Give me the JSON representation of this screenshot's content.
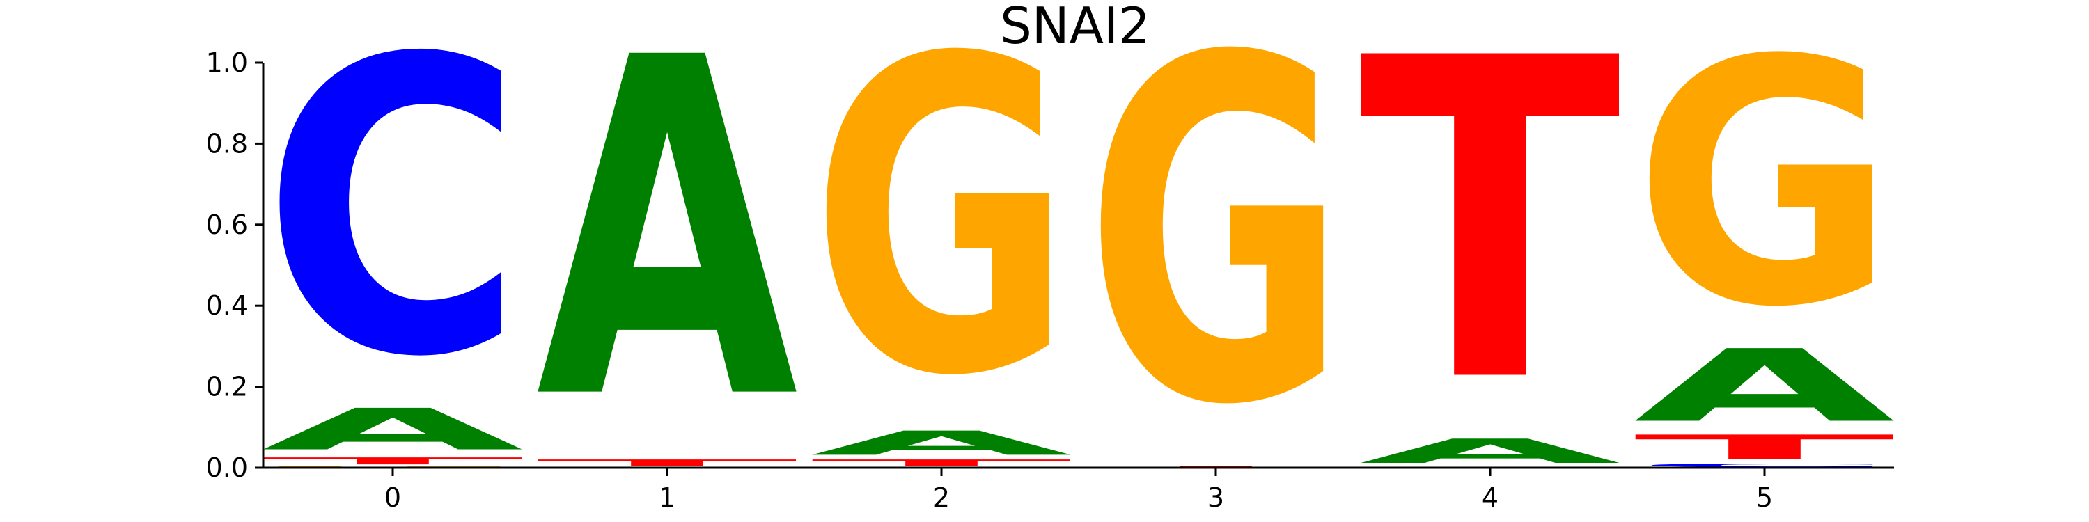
{
  "chart_data": {
    "type": "sequence-logo",
    "title": "SNAI2",
    "xlabel": "",
    "ylabel": "",
    "ylim": [
      0,
      1.0
    ],
    "yticks": [
      "0.0",
      "0.2",
      "0.4",
      "0.6",
      "0.8",
      "1.0"
    ],
    "ytick_values": [
      0.0,
      0.2,
      0.4,
      0.6,
      0.8,
      1.0
    ],
    "xticks": [
      "0",
      "1",
      "2",
      "3",
      "4",
      "5"
    ],
    "colors": {
      "A": "#008000",
      "C": "#0000ff",
      "G": "#ffa500",
      "T": "#ff0000"
    },
    "positions": [
      {
        "pos": 0,
        "stack": [
          {
            "base": "G",
            "height": 0.005
          },
          {
            "base": "T",
            "height": 0.02
          },
          {
            "base": "A",
            "height": 0.12
          },
          {
            "base": "C",
            "height": 0.855
          }
        ]
      },
      {
        "pos": 1,
        "stack": [
          {
            "base": "T",
            "height": 0.02
          },
          {
            "base": "A",
            "height": 0.98
          }
        ]
      },
      {
        "pos": 2,
        "stack": [
          {
            "base": "T",
            "height": 0.02
          },
          {
            "base": "A",
            "height": 0.07
          },
          {
            "base": "G",
            "height": 0.91
          }
        ]
      },
      {
        "pos": 3,
        "stack": [
          {
            "base": "T",
            "height": 0.005
          },
          {
            "base": "G",
            "height": 0.995
          }
        ]
      },
      {
        "pos": 4,
        "stack": [
          {
            "base": "A",
            "height": 0.07
          },
          {
            "base": "T",
            "height": 0.93
          }
        ]
      },
      {
        "pos": 5,
        "stack": [
          {
            "base": "C",
            "height": 0.01
          },
          {
            "base": "T",
            "height": 0.07
          },
          {
            "base": "A",
            "height": 0.21
          },
          {
            "base": "G",
            "height": 0.71
          }
        ]
      }
    ]
  }
}
